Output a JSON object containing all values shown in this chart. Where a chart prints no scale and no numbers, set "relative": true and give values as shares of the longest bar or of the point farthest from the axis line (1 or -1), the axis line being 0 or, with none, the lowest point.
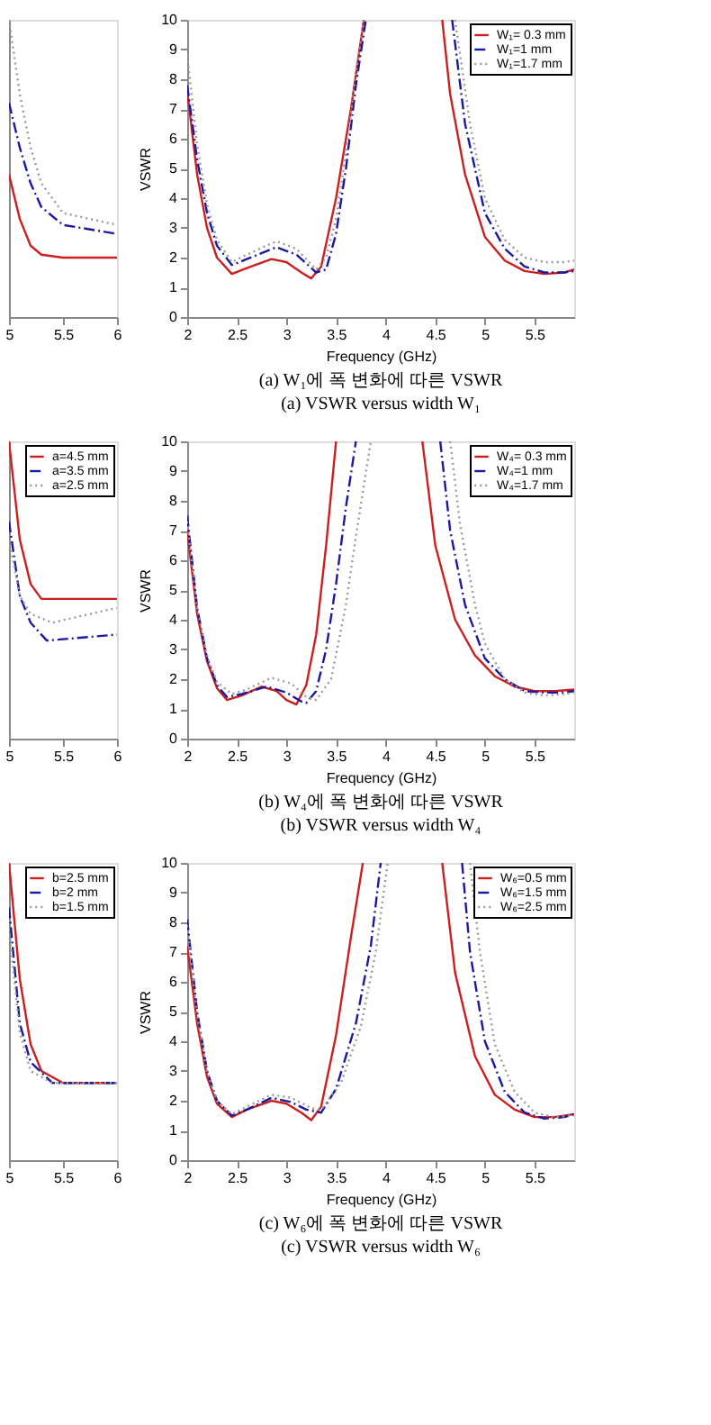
{
  "chart_data": [
    {
      "type": "line",
      "relative": true,
      "xlim": [
        5,
        6
      ],
      "xticks": [
        5,
        5.5,
        6
      ],
      "tick_labels": "x",
      "legend": false,
      "grid": false,
      "series": [
        {
          "color": "#cc2020",
          "line_style": "solid",
          "x": [
            5.0,
            5.1,
            5.2,
            5.3,
            5.5,
            6.0
          ],
          "values": [
            0.48,
            0.33,
            0.24,
            0.21,
            0.2,
            0.2
          ]
        },
        {
          "color": "#1a1aa0",
          "line_style": "dashed",
          "x": [
            5.0,
            5.1,
            5.2,
            5.3,
            5.5,
            6.0
          ],
          "values": [
            0.72,
            0.57,
            0.45,
            0.37,
            0.31,
            0.28
          ]
        },
        {
          "color": "#9a9a9a",
          "line_style": "dotted",
          "x": [
            5.0,
            5.1,
            5.2,
            5.3,
            5.5,
            6.0
          ],
          "values": [
            1,
            0.75,
            0.57,
            0.45,
            0.35,
            0.31
          ]
        }
      ]
    },
    {
      "type": "line",
      "title": "(a) W₁에 폭 변화에 따른 VSWR",
      "subtitle": "(a) VSWR versus width W₁",
      "xlabel": "Frequency (GHz)",
      "ylabel": "VSWR",
      "xlim": [
        2,
        5.9
      ],
      "xticks": [
        2,
        2.5,
        3,
        3.5,
        4,
        4.5,
        5,
        5.5
      ],
      "ylim": [
        0,
        10
      ],
      "yticks": [
        0,
        1,
        2,
        3,
        4,
        5,
        6,
        7,
        8,
        9,
        10
      ],
      "legend": "top right",
      "grid": false,
      "series": [
        {
          "name": "W₁= 0.3 mm",
          "color": "#cc2020",
          "line_style": "solid",
          "x": [
            2.0,
            2.1,
            2.2,
            2.3,
            2.45,
            2.6,
            2.85,
            3.0,
            3.15,
            3.25,
            3.35,
            3.5,
            3.65,
            3.78,
            4.2,
            4.57,
            4.65,
            4.8,
            5.0,
            5.2,
            5.4,
            5.6,
            5.8,
            5.9
          ],
          "values": [
            7.6,
            4.8,
            3.0,
            2.0,
            1.45,
            1.65,
            1.95,
            1.85,
            1.5,
            1.3,
            1.7,
            4.0,
            7.0,
            10,
            null,
            10,
            7.5,
            4.8,
            2.7,
            1.9,
            1.55,
            1.45,
            1.5,
            1.6
          ]
        },
        {
          "name": "W₁=1 mm",
          "color": "#1a1aa0",
          "line_style": "dashed",
          "x": [
            2.0,
            2.1,
            2.2,
            2.3,
            2.45,
            2.6,
            2.9,
            3.1,
            3.3,
            3.4,
            3.5,
            3.6,
            3.7,
            3.8,
            4.2,
            4.67,
            4.8,
            5.0,
            5.2,
            5.4,
            5.6,
            5.8,
            5.9
          ],
          "values": [
            7.8,
            5.3,
            3.5,
            2.4,
            1.75,
            1.95,
            2.35,
            2.1,
            1.5,
            1.6,
            2.8,
            5.0,
            7.8,
            10,
            null,
            10,
            6.5,
            3.5,
            2.3,
            1.7,
            1.5,
            1.5,
            1.55
          ]
        },
        {
          "name": "W₁=1.7 mm",
          "color": "#9a9a9a",
          "line_style": "dotted",
          "x": [
            2.0,
            2.1,
            2.2,
            2.3,
            2.45,
            2.6,
            2.9,
            3.1,
            3.3,
            3.4,
            3.5,
            3.6,
            3.7,
            3.78,
            4.2,
            4.7,
            4.85,
            5.0,
            5.2,
            5.4,
            5.6,
            5.8,
            5.9
          ],
          "values": [
            8.8,
            5.8,
            3.8,
            2.6,
            1.85,
            2.1,
            2.55,
            2.3,
            1.6,
            2.0,
            3.3,
            5.5,
            8.2,
            10,
            null,
            10,
            6.5,
            4.0,
            2.6,
            2.0,
            1.85,
            1.85,
            1.9
          ]
        }
      ]
    },
    {
      "type": "line",
      "relative": true,
      "xlim": [
        5,
        6
      ],
      "xticks": [
        5,
        5.5,
        6
      ],
      "tick_labels": "x",
      "legend": "top right",
      "grid": false,
      "series": [
        {
          "name": "a=4.5 mm",
          "color": "#cc2020",
          "line_style": "solid",
          "x": [
            5.0,
            5.1,
            5.2,
            5.3,
            6.0
          ],
          "values": [
            1,
            0.67,
            0.52,
            0.47,
            0.47
          ]
        },
        {
          "name": "a=3.5 mm",
          "color": "#1a1aa0",
          "line_style": "dashed",
          "x": [
            5.0,
            5.1,
            5.2,
            5.35,
            6.0
          ],
          "values": [
            0.73,
            0.48,
            0.39,
            0.33,
            0.35
          ]
        },
        {
          "name": "a=2.5 mm",
          "color": "#9a9a9a",
          "line_style": "dotted",
          "x": [
            5.0,
            5.1,
            5.2,
            5.4,
            6.0
          ],
          "values": [
            0.67,
            0.48,
            0.42,
            0.39,
            0.44
          ]
        }
      ]
    },
    {
      "type": "line",
      "title": "(b) W₄에 폭 변화에 따른 VSWR",
      "subtitle": "(b) VSWR versus width W₄",
      "xlabel": "Frequency (GHz)",
      "ylabel": "VSWR",
      "xlim": [
        2,
        5.9
      ],
      "xticks": [
        2,
        2.5,
        3,
        3.5,
        4,
        4.5,
        5,
        5.5
      ],
      "ylim": [
        0,
        10
      ],
      "yticks": [
        0,
        1,
        2,
        3,
        4,
        5,
        6,
        7,
        8,
        9,
        10
      ],
      "legend": "top right",
      "grid": false,
      "series": [
        {
          "name": "W₄= 0.3 mm",
          "color": "#cc2020",
          "line_style": "solid",
          "x": [
            2.0,
            2.1,
            2.2,
            2.3,
            2.4,
            2.55,
            2.75,
            2.9,
            3.0,
            3.1,
            3.2,
            3.3,
            3.4,
            3.5,
            4.0,
            4.37,
            4.5,
            4.7,
            4.9,
            5.1,
            5.3,
            5.5,
            5.7,
            5.9
          ],
          "values": [
            7.0,
            4.2,
            2.6,
            1.7,
            1.3,
            1.45,
            1.75,
            1.6,
            1.3,
            1.15,
            1.8,
            3.5,
            6.5,
            10,
            null,
            10,
            6.5,
            4.0,
            2.8,
            2.1,
            1.75,
            1.6,
            1.6,
            1.65
          ]
        },
        {
          "name": "W₄=1 mm",
          "color": "#1a1aa0",
          "line_style": "dashed",
          "x": [
            2.0,
            2.1,
            2.2,
            2.3,
            2.4,
            2.55,
            2.8,
            3.0,
            3.15,
            3.2,
            3.3,
            3.4,
            3.5,
            3.6,
            3.7,
            4.1,
            4.55,
            4.65,
            4.8,
            5.0,
            5.2,
            5.4,
            5.6,
            5.8,
            5.9
          ],
          "values": [
            7.5,
            4.4,
            2.7,
            1.8,
            1.4,
            1.5,
            1.75,
            1.55,
            1.25,
            1.2,
            1.6,
            3.0,
            5.2,
            7.8,
            10,
            null,
            10,
            7.0,
            4.5,
            2.7,
            2.0,
            1.6,
            1.55,
            1.55,
            1.6
          ]
        },
        {
          "name": "W₄=1.7 mm",
          "color": "#9a9a9a",
          "line_style": "dotted",
          "x": [
            2.0,
            2.1,
            2.2,
            2.3,
            2.45,
            2.6,
            2.85,
            3.05,
            3.2,
            3.3,
            3.45,
            3.6,
            3.7,
            3.85,
            4.2,
            4.65,
            4.75,
            4.9,
            5.0,
            5.2,
            5.4,
            5.6,
            5.8,
            5.9
          ],
          "values": [
            7.3,
            4.4,
            2.8,
            1.9,
            1.5,
            1.65,
            2.05,
            1.85,
            1.4,
            1.3,
            2.0,
            4.5,
            6.8,
            10,
            null,
            10,
            7.2,
            4.5,
            3.2,
            2.0,
            1.55,
            1.45,
            1.5,
            1.55
          ]
        }
      ]
    },
    {
      "type": "line",
      "relative": true,
      "xlim": [
        5,
        6
      ],
      "xticks": [
        5,
        5.5,
        6
      ],
      "tick_labels": "x",
      "legend": "top right",
      "grid": false,
      "series": [
        {
          "name": "b=2.5 mm",
          "color": "#cc2020",
          "line_style": "solid",
          "x": [
            5.0,
            5.1,
            5.2,
            5.3,
            5.5,
            6.0
          ],
          "values": [
            1,
            0.61,
            0.39,
            0.3,
            0.26,
            0.26
          ]
        },
        {
          "name": "b=2 mm",
          "color": "#1a1aa0",
          "line_style": "dashed",
          "x": [
            5.0,
            5.1,
            5.2,
            5.4,
            6.0
          ],
          "values": [
            0.85,
            0.46,
            0.33,
            0.26,
            0.26
          ]
        },
        {
          "name": "b=1.5 mm",
          "color": "#9a9a9a",
          "line_style": "dotted",
          "x": [
            5.0,
            5.1,
            5.2,
            5.4,
            6.0
          ],
          "values": [
            0.78,
            0.43,
            0.3,
            0.26,
            0.26
          ]
        }
      ]
    },
    {
      "type": "line",
      "title": "(c) W₆에 폭 변화에 따른 VSWR",
      "subtitle": "(c) VSWR versus width W₆",
      "xlabel": "Frequency (GHz)",
      "ylabel": "VSWR",
      "xlim": [
        2,
        5.9
      ],
      "xticks": [
        2,
        2.5,
        3,
        3.5,
        4,
        4.5,
        5,
        5.5
      ],
      "ylim": [
        0,
        10
      ],
      "yticks": [
        0,
        1,
        2,
        3,
        4,
        5,
        6,
        7,
        8,
        9,
        10
      ],
      "legend": "top right",
      "grid": false,
      "series": [
        {
          "name": "W₆=0.5 mm",
          "color": "#cc2020",
          "line_style": "solid",
          "x": [
            2.0,
            2.1,
            2.2,
            2.3,
            2.45,
            2.6,
            2.85,
            3.0,
            3.15,
            3.25,
            3.35,
            3.5,
            3.65,
            3.77,
            4.2,
            4.57,
            4.7,
            4.9,
            5.1,
            5.3,
            5.5,
            5.7,
            5.9
          ],
          "values": [
            7.2,
            4.6,
            2.8,
            1.9,
            1.45,
            1.7,
            2.0,
            1.9,
            1.6,
            1.35,
            1.8,
            4.2,
            7.5,
            10,
            null,
            10,
            6.3,
            3.5,
            2.2,
            1.7,
            1.45,
            1.45,
            1.55
          ]
        },
        {
          "name": "W₆=1.5 mm",
          "color": "#1a1aa0",
          "line_style": "dashed",
          "x": [
            2.0,
            2.1,
            2.2,
            2.3,
            2.45,
            2.6,
            2.85,
            3.05,
            3.2,
            3.35,
            3.5,
            3.7,
            3.85,
            3.95,
            4.4,
            4.77,
            4.85,
            5.0,
            5.2,
            5.4,
            5.6,
            5.8,
            5.9
          ],
          "values": [
            8.1,
            5.0,
            3.0,
            2.0,
            1.5,
            1.7,
            2.1,
            1.95,
            1.7,
            1.6,
            2.4,
            4.6,
            7.2,
            10,
            null,
            10,
            7.0,
            4.0,
            2.3,
            1.6,
            1.4,
            1.45,
            1.55
          ]
        },
        {
          "name": "W₆=2.5 mm",
          "color": "#9a9a9a",
          "line_style": "dotted",
          "x": [
            2.0,
            2.1,
            2.2,
            2.3,
            2.45,
            2.6,
            2.85,
            3.05,
            3.25,
            3.35,
            3.55,
            3.75,
            3.9,
            4.02,
            4.4,
            4.85,
            4.95,
            5.1,
            5.3,
            5.5,
            5.7,
            5.9
          ],
          "values": [
            7.9,
            4.9,
            3.0,
            2.0,
            1.55,
            1.8,
            2.2,
            2.1,
            1.75,
            1.7,
            2.6,
            4.5,
            7.0,
            10,
            null,
            10,
            7.0,
            3.9,
            2.3,
            1.6,
            1.45,
            1.5
          ]
        }
      ]
    }
  ]
}
